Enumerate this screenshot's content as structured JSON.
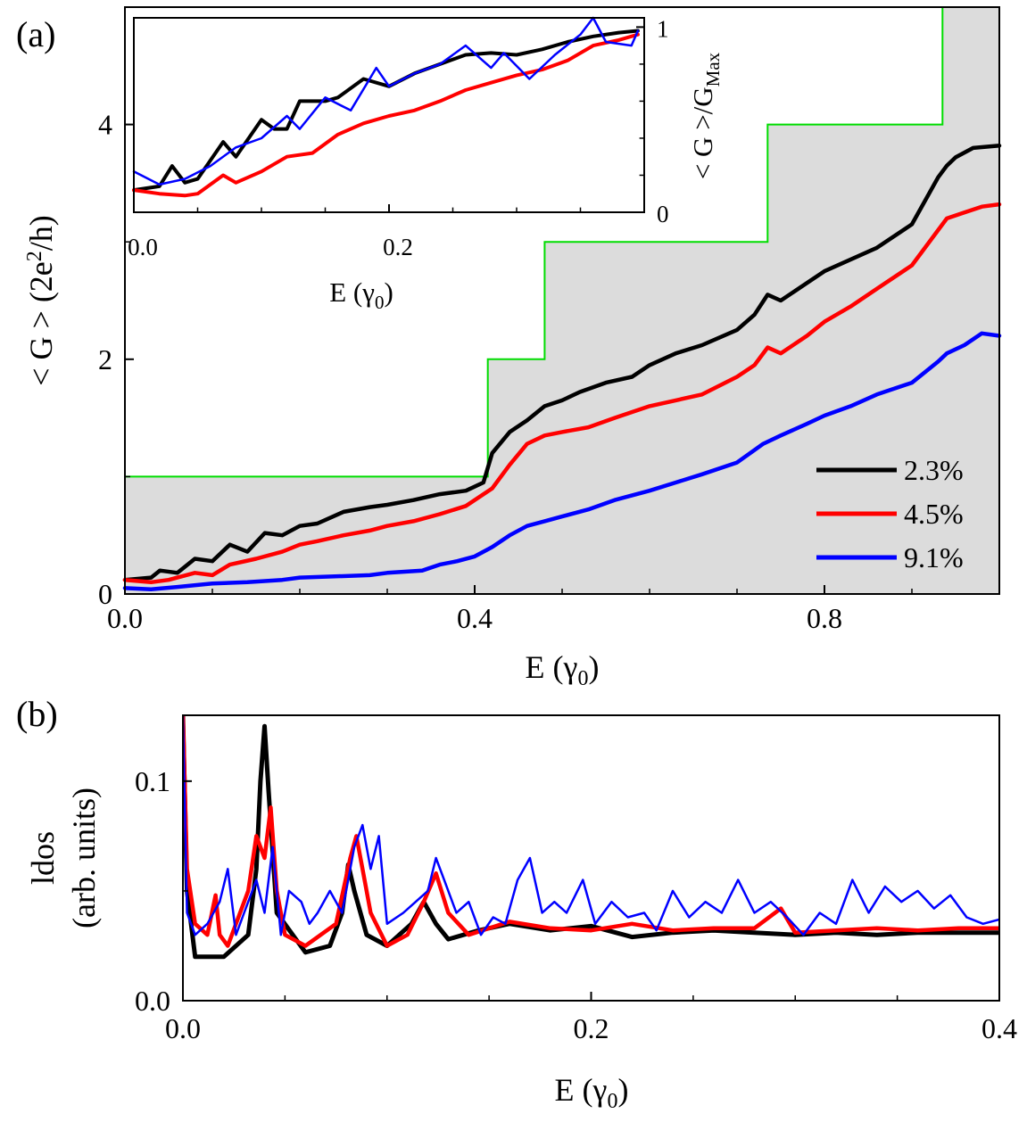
{
  "chart_data": [
    {
      "panel": "(a)",
      "type": "line",
      "xlabel": "E (γ0)",
      "ylabel": "< G > (2e²/h)",
      "xlim": [
        0.0,
        1.0
      ],
      "ylim": [
        0,
        5
      ],
      "xticks": [
        "0.0",
        "0.4",
        "0.8"
      ],
      "yticks": [
        "0",
        "2",
        "4"
      ],
      "legend_position": "bottom-right",
      "background_step": {
        "color": "#00dd00",
        "fill": "#dcdcdc",
        "x": [
          0.0,
          0.415,
          0.415,
          0.48,
          0.48,
          0.735,
          0.735,
          0.935,
          0.935,
          1.0
        ],
        "y": [
          1,
          1,
          2,
          2,
          3,
          3,
          4,
          4,
          5,
          5
        ]
      },
      "series": [
        {
          "name": "2.3%",
          "color": "#000000",
          "x": [
            0.0,
            0.03,
            0.04,
            0.06,
            0.08,
            0.1,
            0.12,
            0.14,
            0.16,
            0.18,
            0.2,
            0.22,
            0.25,
            0.28,
            0.3,
            0.33,
            0.36,
            0.39,
            0.41,
            0.42,
            0.44,
            0.46,
            0.48,
            0.5,
            0.52,
            0.55,
            0.58,
            0.6,
            0.63,
            0.66,
            0.7,
            0.72,
            0.735,
            0.75,
            0.78,
            0.8,
            0.83,
            0.86,
            0.9,
            0.93,
            0.94,
            0.95,
            0.97,
            1.0
          ],
          "y": [
            0.12,
            0.14,
            0.2,
            0.18,
            0.3,
            0.28,
            0.42,
            0.36,
            0.52,
            0.5,
            0.58,
            0.6,
            0.7,
            0.74,
            0.76,
            0.8,
            0.85,
            0.88,
            0.95,
            1.2,
            1.38,
            1.48,
            1.6,
            1.65,
            1.72,
            1.8,
            1.85,
            1.95,
            2.05,
            2.12,
            2.25,
            2.38,
            2.55,
            2.5,
            2.65,
            2.75,
            2.85,
            2.95,
            3.15,
            3.55,
            3.65,
            3.72,
            3.8,
            3.82
          ]
        },
        {
          "name": "4.5%",
          "color": "#ff0000",
          "x": [
            0.0,
            0.03,
            0.05,
            0.08,
            0.1,
            0.12,
            0.15,
            0.18,
            0.2,
            0.22,
            0.25,
            0.28,
            0.3,
            0.33,
            0.36,
            0.39,
            0.42,
            0.44,
            0.46,
            0.48,
            0.5,
            0.53,
            0.56,
            0.6,
            0.63,
            0.66,
            0.7,
            0.72,
            0.735,
            0.75,
            0.78,
            0.8,
            0.83,
            0.86,
            0.9,
            0.93,
            0.94,
            0.96,
            0.98,
            1.0
          ],
          "y": [
            0.12,
            0.1,
            0.12,
            0.18,
            0.16,
            0.25,
            0.3,
            0.36,
            0.42,
            0.45,
            0.5,
            0.54,
            0.58,
            0.62,
            0.68,
            0.75,
            0.9,
            1.1,
            1.28,
            1.35,
            1.38,
            1.42,
            1.5,
            1.6,
            1.65,
            1.7,
            1.85,
            1.95,
            2.1,
            2.05,
            2.2,
            2.32,
            2.45,
            2.6,
            2.8,
            3.1,
            3.2,
            3.25,
            3.3,
            3.32
          ]
        },
        {
          "name": "9.1%",
          "color": "#0000ff",
          "x": [
            0.0,
            0.03,
            0.06,
            0.1,
            0.14,
            0.18,
            0.2,
            0.24,
            0.28,
            0.3,
            0.34,
            0.36,
            0.38,
            0.4,
            0.42,
            0.44,
            0.46,
            0.48,
            0.5,
            0.53,
            0.56,
            0.6,
            0.63,
            0.66,
            0.7,
            0.73,
            0.75,
            0.78,
            0.8,
            0.83,
            0.86,
            0.9,
            0.93,
            0.94,
            0.96,
            0.98,
            1.0
          ],
          "y": [
            0.05,
            0.04,
            0.06,
            0.09,
            0.1,
            0.12,
            0.14,
            0.15,
            0.16,
            0.18,
            0.2,
            0.25,
            0.28,
            0.32,
            0.4,
            0.5,
            0.58,
            0.62,
            0.66,
            0.72,
            0.8,
            0.88,
            0.95,
            1.02,
            1.12,
            1.28,
            1.35,
            1.45,
            1.52,
            1.6,
            1.7,
            1.8,
            1.98,
            2.05,
            2.12,
            2.22,
            2.2
          ]
        }
      ],
      "inset": {
        "type": "line",
        "xlabel": "E (γ0)",
        "ylabel": "< G >/G_Max",
        "xlim": [
          0.0,
          0.4
        ],
        "ylim": [
          0,
          1.05
        ],
        "xticks": [
          "0.0",
          "0.2"
        ],
        "yticks": [
          "0",
          "1"
        ],
        "series": [
          {
            "name": "2.3%",
            "color": "#000000",
            "x": [
              0.0,
              0.02,
              0.03,
              0.04,
              0.05,
              0.07,
              0.08,
              0.09,
              0.1,
              0.11,
              0.12,
              0.13,
              0.15,
              0.16,
              0.18,
              0.2,
              0.22,
              0.24,
              0.26,
              0.28,
              0.3,
              0.32,
              0.34,
              0.36,
              0.38,
              0.395
            ],
            "y": [
              0.12,
              0.14,
              0.25,
              0.16,
              0.18,
              0.38,
              0.3,
              0.4,
              0.5,
              0.45,
              0.45,
              0.6,
              0.6,
              0.62,
              0.72,
              0.68,
              0.75,
              0.8,
              0.85,
              0.86,
              0.85,
              0.88,
              0.92,
              0.95,
              0.97,
              0.98
            ]
          },
          {
            "name": "4.5%",
            "color": "#ff0000",
            "x": [
              0.0,
              0.02,
              0.04,
              0.05,
              0.07,
              0.08,
              0.1,
              0.12,
              0.14,
              0.16,
              0.18,
              0.2,
              0.22,
              0.24,
              0.26,
              0.28,
              0.3,
              0.32,
              0.34,
              0.36,
              0.38,
              0.395
            ],
            "y": [
              0.12,
              0.1,
              0.09,
              0.1,
              0.2,
              0.16,
              0.22,
              0.3,
              0.32,
              0.42,
              0.48,
              0.52,
              0.55,
              0.6,
              0.66,
              0.7,
              0.74,
              0.77,
              0.82,
              0.9,
              0.93,
              0.96
            ]
          },
          {
            "name": "9.1%",
            "color": "#0000ff",
            "x": [
              0.0,
              0.02,
              0.04,
              0.06,
              0.08,
              0.1,
              0.12,
              0.13,
              0.15,
              0.17,
              0.19,
              0.2,
              0.22,
              0.24,
              0.26,
              0.28,
              0.29,
              0.31,
              0.33,
              0.35,
              0.36,
              0.37,
              0.39,
              0.395
            ],
            "y": [
              0.22,
              0.15,
              0.18,
              0.25,
              0.35,
              0.4,
              0.52,
              0.45,
              0.62,
              0.55,
              0.78,
              0.68,
              0.75,
              0.8,
              0.9,
              0.78,
              0.86,
              0.72,
              0.85,
              0.96,
              1.05,
              0.92,
              0.9,
              0.98
            ]
          }
        ]
      }
    },
    {
      "panel": "(b)",
      "type": "line",
      "xlabel": "E (γ0)",
      "ylabel": "ldos (arb. units)",
      "xlim": [
        0.0,
        0.4
      ],
      "ylim": [
        0.0,
        0.13
      ],
      "xticks": [
        "0.0",
        "0.2",
        "0.4"
      ],
      "yticks": [
        "0.0",
        "0.1"
      ],
      "series": [
        {
          "name": "2.3%",
          "color": "#000000",
          "x": [
            0.0,
            0.002,
            0.006,
            0.02,
            0.032,
            0.036,
            0.038,
            0.04,
            0.042,
            0.046,
            0.06,
            0.072,
            0.078,
            0.081,
            0.084,
            0.09,
            0.1,
            0.112,
            0.118,
            0.124,
            0.13,
            0.145,
            0.16,
            0.18,
            0.2,
            0.22,
            0.24,
            0.26,
            0.28,
            0.3,
            0.32,
            0.34,
            0.36,
            0.38,
            0.4
          ],
          "y": [
            0.13,
            0.05,
            0.02,
            0.02,
            0.03,
            0.06,
            0.1,
            0.125,
            0.095,
            0.04,
            0.022,
            0.025,
            0.04,
            0.062,
            0.05,
            0.03,
            0.025,
            0.035,
            0.045,
            0.035,
            0.028,
            0.032,
            0.035,
            0.032,
            0.034,
            0.029,
            0.031,
            0.032,
            0.031,
            0.03,
            0.031,
            0.03,
            0.031,
            0.031,
            0.031
          ]
        },
        {
          "name": "4.5%",
          "color": "#ff0000",
          "x": [
            0.0,
            0.002,
            0.006,
            0.012,
            0.016,
            0.018,
            0.022,
            0.032,
            0.036,
            0.04,
            0.043,
            0.046,
            0.05,
            0.06,
            0.075,
            0.082,
            0.085,
            0.088,
            0.092,
            0.1,
            0.11,
            0.118,
            0.124,
            0.13,
            0.14,
            0.16,
            0.18,
            0.2,
            0.22,
            0.24,
            0.26,
            0.28,
            0.293,
            0.3,
            0.32,
            0.34,
            0.36,
            0.38,
            0.4
          ],
          "y": [
            0.13,
            0.06,
            0.035,
            0.03,
            0.048,
            0.03,
            0.025,
            0.05,
            0.075,
            0.065,
            0.088,
            0.05,
            0.03,
            0.025,
            0.035,
            0.065,
            0.075,
            0.06,
            0.04,
            0.025,
            0.03,
            0.045,
            0.058,
            0.04,
            0.03,
            0.036,
            0.033,
            0.032,
            0.035,
            0.032,
            0.033,
            0.033,
            0.042,
            0.031,
            0.032,
            0.033,
            0.032,
            0.033,
            0.033
          ]
        },
        {
          "name": "9.1%",
          "color": "#0000ff",
          "x": [
            0.0,
            0.002,
            0.006,
            0.012,
            0.018,
            0.022,
            0.026,
            0.03,
            0.036,
            0.04,
            0.044,
            0.048,
            0.052,
            0.058,
            0.062,
            0.066,
            0.072,
            0.078,
            0.084,
            0.088,
            0.092,
            0.096,
            0.1,
            0.108,
            0.114,
            0.12,
            0.124,
            0.128,
            0.134,
            0.14,
            0.146,
            0.152,
            0.158,
            0.164,
            0.17,
            0.176,
            0.182,
            0.188,
            0.196,
            0.202,
            0.21,
            0.218,
            0.226,
            0.232,
            0.24,
            0.248,
            0.256,
            0.264,
            0.272,
            0.28,
            0.288,
            0.296,
            0.304,
            0.312,
            0.32,
            0.328,
            0.336,
            0.344,
            0.352,
            0.36,
            0.368,
            0.376,
            0.384,
            0.392,
            0.4
          ],
          "y": [
            0.13,
            0.04,
            0.03,
            0.035,
            0.045,
            0.06,
            0.03,
            0.04,
            0.055,
            0.04,
            0.07,
            0.03,
            0.05,
            0.045,
            0.035,
            0.04,
            0.05,
            0.04,
            0.07,
            0.08,
            0.06,
            0.075,
            0.035,
            0.04,
            0.045,
            0.05,
            0.065,
            0.055,
            0.04,
            0.045,
            0.03,
            0.038,
            0.035,
            0.055,
            0.065,
            0.04,
            0.045,
            0.04,
            0.055,
            0.035,
            0.045,
            0.038,
            0.04,
            0.032,
            0.05,
            0.038,
            0.045,
            0.04,
            0.055,
            0.04,
            0.045,
            0.038,
            0.03,
            0.04,
            0.035,
            0.055,
            0.04,
            0.052,
            0.045,
            0.05,
            0.042,
            0.048,
            0.038,
            0.035,
            0.037
          ]
        }
      ]
    }
  ]
}
